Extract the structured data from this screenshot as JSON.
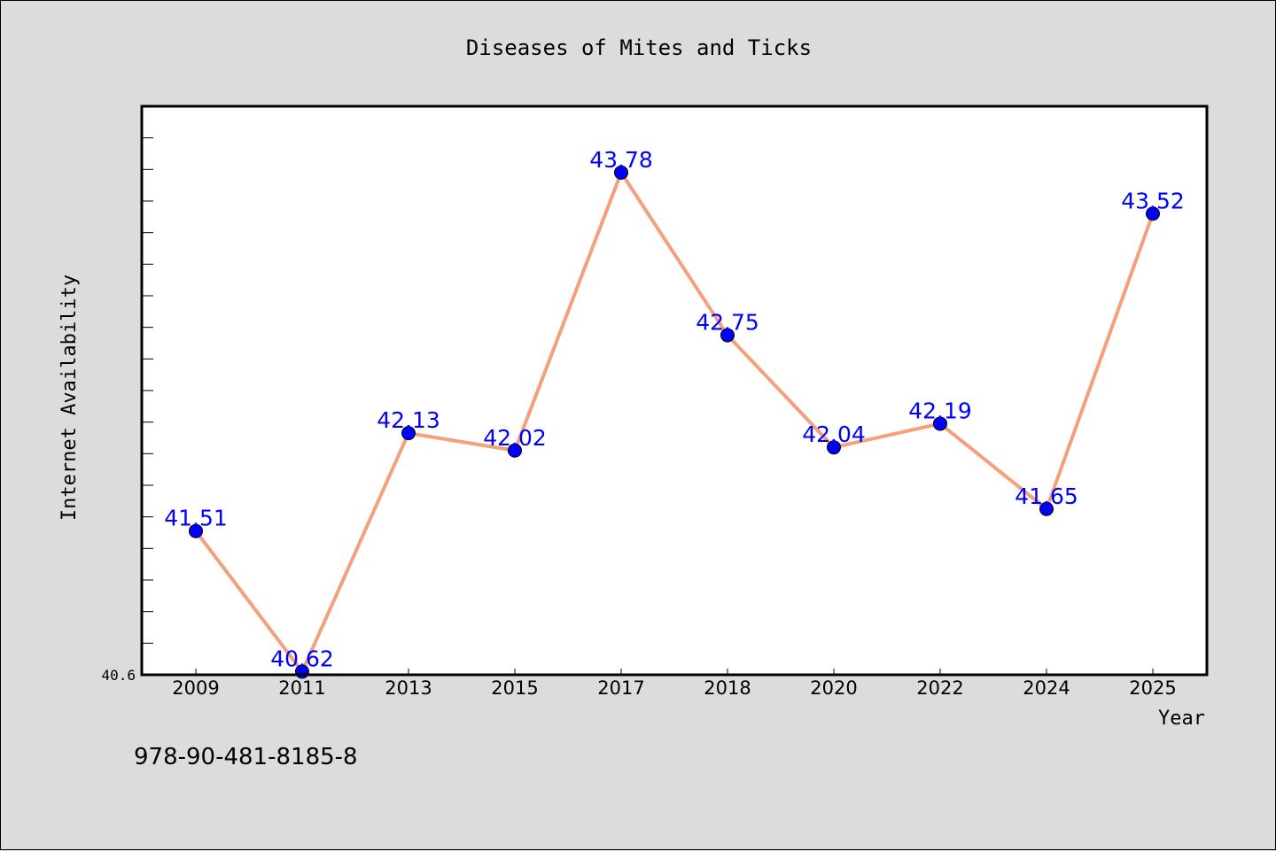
{
  "chart_data": {
    "type": "line",
    "title": "Diseases of Mites and Ticks",
    "xlabel": "Year",
    "ylabel": "Internet Availability",
    "categories": [
      "2009",
      "2011",
      "2013",
      "2015",
      "2017",
      "2018",
      "2020",
      "2022",
      "2024",
      "2025"
    ],
    "series": [
      {
        "values": [
          41.51,
          40.62,
          42.13,
          42.02,
          43.78,
          42.75,
          42.04,
          42.19,
          41.65,
          43.52
        ]
      }
    ],
    "data_labels": [
      "41.51",
      "40.62",
      "42.13",
      "42.02",
      "43.78",
      "42.75",
      "42.04",
      "42.19",
      "41.65",
      "43.52"
    ],
    "y_tick_labels": [
      "40.6"
    ],
    "ylim": [
      40.6,
      44.2
    ],
    "grid": false,
    "line_color": "#f4a07c",
    "marker_color": "#0000ff",
    "label_color": "#0000ff",
    "plot_background": "#ffffff",
    "figure_background": "#dcdcdc"
  },
  "annotation": "978-90-481-8185-8"
}
